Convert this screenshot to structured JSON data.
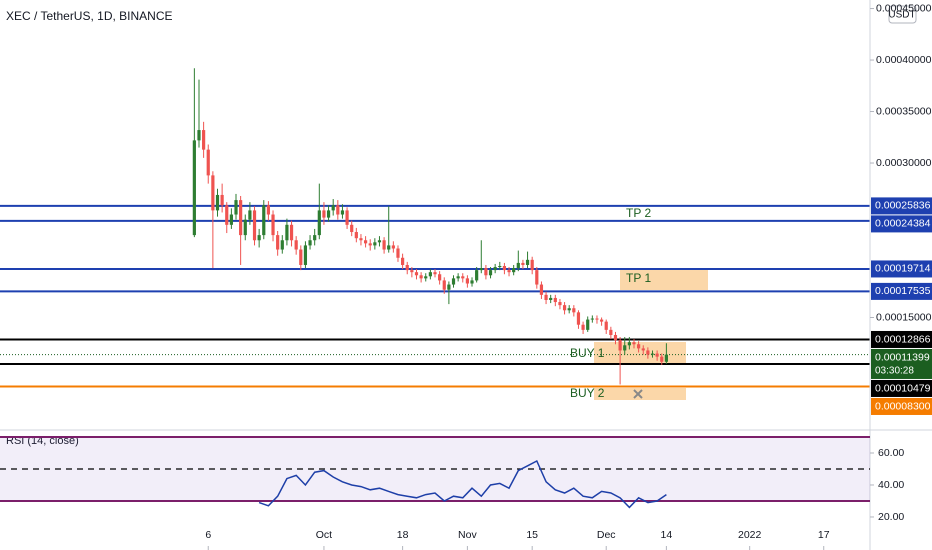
{
  "chart_data": {
    "type": "candlestick",
    "title": "XEC / TetherUS, 1D, BINANCE",
    "currency": "USDT",
    "up_color": "#2e7d32",
    "down_color": "#ef5350",
    "x": [
      246,
      247,
      248,
      249,
      250,
      251,
      252,
      253,
      254,
      255,
      256,
      257,
      258,
      259,
      260,
      261,
      262,
      263,
      264,
      265,
      266,
      267,
      268,
      269,
      270,
      271,
      272,
      273,
      274,
      275,
      276,
      277,
      278,
      279,
      280,
      281,
      282,
      283,
      284,
      285,
      286,
      287,
      288,
      289,
      290,
      291,
      292,
      293,
      294,
      295,
      296,
      297,
      298,
      299,
      300,
      301,
      302,
      303,
      304,
      305,
      306,
      307,
      308,
      309,
      310,
      311,
      312,
      313,
      314,
      315,
      316,
      317,
      318,
      319,
      320,
      321,
      322,
      323,
      324,
      325,
      326,
      327,
      328,
      329,
      330,
      331,
      332,
      333,
      334,
      335,
      336,
      337,
      338,
      339,
      340,
      341,
      342,
      343,
      344,
      345,
      346,
      347,
      348
    ],
    "open": [
      0.00023,
      0.000322,
      0.000332,
      0.000313,
      0.000288,
      0.000254,
      0.000269,
      0.000259,
      0.00024,
      0.00025,
      0.000264,
      0.00023,
      0.000245,
      0.000254,
      0.000225,
      0.00023,
      0.000259,
      0.00025,
      0.00023,
      0.000216,
      0.000225,
      0.00024,
      0.000225,
      0.000216,
      0.000201,
      0.00022,
      0.000225,
      0.00023,
      0.000254,
      0.000247,
      0.000254,
      0.000259,
      0.00025,
      0.000254,
      0.00024,
      0.000233,
      0.000227,
      0.000225,
      0.000222,
      0.00022,
      0.000223,
      0.000225,
      0.000216,
      0.00022,
      0.000217,
      0.000208,
      0.000201,
      0.000196,
      0.000194,
      0.000191,
      0.000188,
      0.00019,
      0.000194,
      0.000192,
      0.000186,
      0.000177,
      0.000182,
      0.000188,
      0.00019,
      0.000188,
      0.000183,
      0.000186,
      0.000196,
      0.000198,
      0.000191,
      0.000196,
      0.000199,
      0.0002,
      0.000196,
      0.000194,
      0.000198,
      0.000203,
      0.000201,
      0.000206,
      0.000196,
      0.000182,
      0.000172,
      0.000167,
      0.000169,
      0.000165,
      0.000162,
      0.000157,
      0.000159,
      0.000155,
      0.000143,
      0.000138,
      0.000148,
      0.000149,
      0.000148,
      0.000146,
      0.000138,
      0.000133,
      0.000128,
      0.000118,
      0.000123,
      0.000126,
      0.000124,
      0.00012,
      0.000118,
      0.000114,
      0.000115,
      0.000112,
      0.000107
    ],
    "high": [
      0.000392,
      0.000381,
      0.00034,
      0.000318,
      0.000292,
      0.000275,
      0.00028,
      0.000262,
      0.000256,
      0.00027,
      0.000268,
      0.00025,
      0.000262,
      0.000258,
      0.000236,
      0.000264,
      0.000263,
      0.000254,
      0.000234,
      0.00023,
      0.000246,
      0.000244,
      0.000229,
      0.00022,
      0.000224,
      0.00023,
      0.000236,
      0.00028,
      0.000262,
      0.000259,
      0.000265,
      0.000264,
      0.00026,
      0.000257,
      0.000244,
      0.000237,
      0.000231,
      0.000229,
      0.000226,
      0.000227,
      0.000229,
      0.000228,
      0.000258,
      0.000224,
      0.00022,
      0.000212,
      0.000204,
      0.000199,
      0.000197,
      0.000194,
      0.000193,
      0.000197,
      0.000197,
      0.000195,
      0.000189,
      0.000185,
      0.000191,
      0.000193,
      0.000193,
      0.000191,
      0.000189,
      0.000199,
      0.000225,
      0.000201,
      0.000199,
      0.000202,
      0.000204,
      0.000203,
      0.000199,
      0.000201,
      0.000215,
      0.000206,
      0.000214,
      0.000209,
      0.000199,
      0.000185,
      0.000175,
      0.000172,
      0.000172,
      0.000168,
      0.000165,
      0.000162,
      0.000162,
      0.000157,
      0.000146,
      0.000151,
      0.000152,
      0.000152,
      0.00015,
      0.000148,
      0.000141,
      0.000136,
      0.000131,
      0.000131,
      0.000131,
      0.000129,
      0.000127,
      0.000123,
      0.000121,
      0.000118,
      0.000118,
      0.000115,
      0.000125
    ],
    "low": [
      0.000228,
      0.000315,
      0.000305,
      0.00028,
      0.000198,
      0.000248,
      0.000252,
      0.000232,
      0.000236,
      0.000245,
      0.000201,
      0.000225,
      0.00024,
      0.00022,
      0.000218,
      0.000226,
      0.000244,
      0.000224,
      0.00021,
      0.000212,
      0.00022,
      0.000219,
      0.000211,
      0.000196,
      0.000198,
      0.000216,
      0.00022,
      0.000226,
      0.00024,
      0.000243,
      0.000249,
      0.000245,
      0.000246,
      0.000236,
      0.000229,
      0.000223,
      0.00022,
      0.000218,
      0.000215,
      0.000216,
      0.000219,
      0.000212,
      0.000213,
      0.000213,
      0.000204,
      0.000197,
      0.000192,
      0.000189,
      0.000187,
      0.000184,
      0.000185,
      0.000187,
      0.000189,
      0.000182,
      0.000173,
      0.000163,
      0.000179,
      0.000185,
      0.000184,
      0.000179,
      0.00018,
      0.000184,
      0.000193,
      0.000187,
      0.000188,
      0.000193,
      0.000196,
      0.000192,
      0.00019,
      0.000191,
      0.000195,
      0.000197,
      0.000198,
      0.000192,
      0.000178,
      0.000168,
      0.000163,
      0.000164,
      0.000161,
      0.000158,
      0.000153,
      0.000154,
      0.000151,
      0.000139,
      0.000134,
      0.000136,
      0.000145,
      0.000144,
      0.000142,
      0.000134,
      0.000129,
      0.000124,
      8.5e-05,
      0.000114,
      0.000119,
      0.00012,
      0.000116,
      0.000114,
      0.00011,
      0.000111,
      0.000108,
      0.000104,
      0.000105
    ],
    "close": [
      0.000322,
      0.000332,
      0.000313,
      0.000288,
      0.000254,
      0.000269,
      0.000259,
      0.00024,
      0.00025,
      0.000264,
      0.00023,
      0.000245,
      0.000254,
      0.000225,
      0.00023,
      0.000259,
      0.00025,
      0.00023,
      0.000216,
      0.000225,
      0.00024,
      0.000225,
      0.000216,
      0.000201,
      0.00022,
      0.000225,
      0.00023,
      0.000254,
      0.000247,
      0.000254,
      0.000259,
      0.00025,
      0.000254,
      0.00024,
      0.000233,
      0.000227,
      0.000225,
      0.000222,
      0.00022,
      0.000223,
      0.000225,
      0.000216,
      0.00022,
      0.000217,
      0.000208,
      0.000201,
      0.000196,
      0.000194,
      0.000191,
      0.000188,
      0.00019,
      0.000194,
      0.000192,
      0.000186,
      0.000177,
      0.000182,
      0.000188,
      0.00019,
      0.000188,
      0.000183,
      0.000186,
      0.000196,
      0.000198,
      0.000191,
      0.000196,
      0.000199,
      0.0002,
      0.000196,
      0.000194,
      0.000198,
      0.000203,
      0.000201,
      0.000206,
      0.000196,
      0.000182,
      0.000172,
      0.000167,
      0.000169,
      0.000165,
      0.000162,
      0.000157,
      0.000159,
      0.000155,
      0.000143,
      0.000138,
      0.000148,
      0.000149,
      0.000148,
      0.000146,
      0.000138,
      0.000133,
      0.000128,
      0.000118,
      0.000123,
      0.000126,
      0.000124,
      0.00012,
      0.000118,
      0.000114,
      0.000115,
      0.000112,
      0.000107,
      0.000114
    ],
    "xlim": [
      204,
      392
    ],
    "xticks": [
      {
        "value": 249,
        "label": "6"
      },
      {
        "value": 274,
        "label": "Oct"
      },
      {
        "value": 291,
        "label": "18"
      },
      {
        "value": 305,
        "label": "Nov"
      },
      {
        "value": 319,
        "label": "15"
      },
      {
        "value": 335,
        "label": "Dec"
      },
      {
        "value": 348,
        "label": "14"
      },
      {
        "value": 366,
        "label": "2022"
      },
      {
        "value": 382,
        "label": "17"
      }
    ],
    "ylim": [
      4.27e-05,
      0.0004583
    ],
    "yticks": [
      {
        "value": 0.00045,
        "label": "0.00045000"
      },
      {
        "value": 0.0004,
        "label": "0.00040000"
      },
      {
        "value": 0.00035,
        "label": "0.00035000"
      },
      {
        "value": 0.0003,
        "label": "0.00030000"
      },
      {
        "value": 0.00015,
        "label": "0.00015000"
      }
    ],
    "levels": [
      {
        "value": 0.00025836,
        "label": "0.00025836",
        "color": "#1e40b0"
      },
      {
        "value": 0.00024384,
        "label": "0.00024384",
        "color": "#1e40b0"
      },
      {
        "value": 0.00019714,
        "label": "0.00019714",
        "color": "#1e40b0"
      },
      {
        "value": 0.00017535,
        "label": "0.00017535",
        "color": "#1e40b0"
      },
      {
        "value": 0.00012866,
        "label": "0.00012866",
        "color": "#000000"
      },
      {
        "value": 0.00010479,
        "label": "0.00010479",
        "color": "#000000"
      },
      {
        "value": 8.3e-05,
        "label": "0.00008300",
        "color": "#f57c00"
      }
    ],
    "last_price": {
      "value": 0.00011399,
      "label": "0.00011399",
      "countdown": "03:30:28",
      "color": "#1b5e20"
    },
    "annotations": [
      "TP 2",
      "TP 1",
      "BUY 1",
      "BUY 2"
    ],
    "indicator": {
      "type": "line",
      "name": "RSI (14, close)",
      "color": "#1e3fa8",
      "x": [
        260,
        262,
        264,
        266,
        268,
        270,
        272,
        274,
        276,
        278,
        280,
        282,
        284,
        286,
        288,
        290,
        292,
        294,
        296,
        298,
        300,
        302,
        304,
        306,
        308,
        310,
        312,
        314,
        316,
        318,
        320,
        322,
        324,
        326,
        328,
        330,
        332,
        334,
        336,
        338,
        340,
        342,
        344,
        346,
        348
      ],
      "values": [
        29,
        27,
        33,
        44,
        46,
        40,
        48,
        49,
        45,
        42,
        40,
        39,
        37,
        38,
        36,
        34,
        33,
        32,
        34,
        35,
        30,
        33,
        32,
        38,
        33,
        40,
        41,
        38,
        49,
        52,
        55,
        42,
        37,
        35,
        38,
        33,
        32,
        36,
        35,
        32,
        26,
        32,
        29,
        30,
        34
      ],
      "ylim": [
        0.6,
        72.5
      ],
      "yticks": [
        {
          "value": 60,
          "label": "60.00"
        },
        {
          "value": 40,
          "label": "40.00"
        },
        {
          "value": 20,
          "label": "20.00"
        }
      ],
      "bands": [
        30,
        70
      ],
      "midline": 50
    }
  }
}
